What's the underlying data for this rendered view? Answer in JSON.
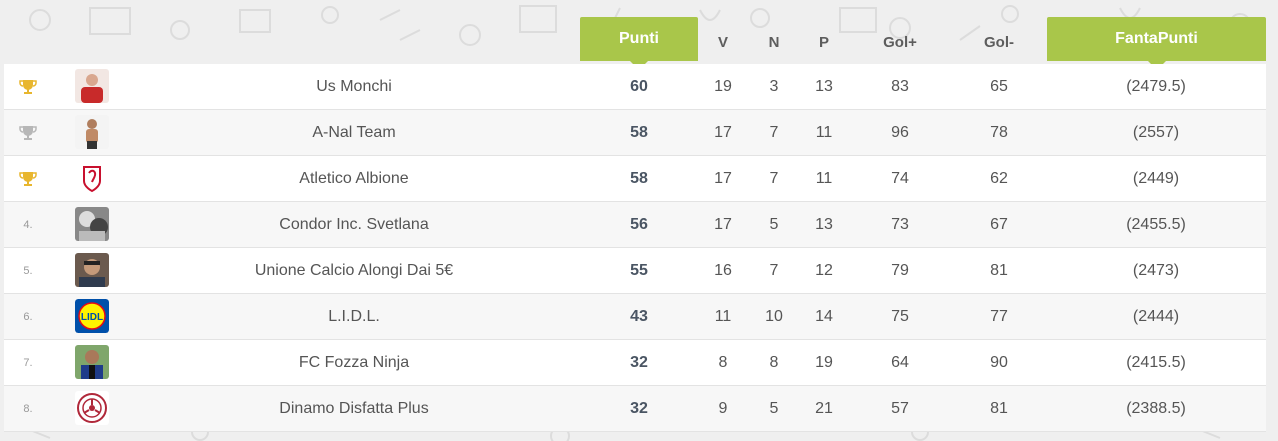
{
  "header": {
    "punti": "Punti",
    "v": "V",
    "n": "N",
    "p": "P",
    "gol_plus": "Gol+",
    "gol_minus": "Gol-",
    "fantapunti": "FantaPunti",
    "accent_color": "#a9c64a"
  },
  "rows": [
    {
      "rank_icon": "trophy-gold",
      "rank": "",
      "team": "Us Monchi",
      "punti": "60",
      "v": "19",
      "n": "3",
      "p": "13",
      "gol_plus": "83",
      "gol_minus": "65",
      "fantapunti": "(2479.5)"
    },
    {
      "rank_icon": "trophy-silver",
      "rank": "",
      "team": "A-Nal Team",
      "punti": "58",
      "v": "17",
      "n": "7",
      "p": "11",
      "gol_plus": "96",
      "gol_minus": "78",
      "fantapunti": "(2557)"
    },
    {
      "rank_icon": "trophy-gold",
      "rank": "",
      "team": "Atletico Albione",
      "punti": "58",
      "v": "17",
      "n": "7",
      "p": "11",
      "gol_plus": "74",
      "gol_minus": "62",
      "fantapunti": "(2449)"
    },
    {
      "rank_icon": "",
      "rank": "4.",
      "team": "Condor Inc. Svetlana",
      "punti": "56",
      "v": "17",
      "n": "5",
      "p": "13",
      "gol_plus": "73",
      "gol_minus": "67",
      "fantapunti": "(2455.5)"
    },
    {
      "rank_icon": "",
      "rank": "5.",
      "team": "Unione Calcio Alongi Dai 5€",
      "punti": "55",
      "v": "16",
      "n": "7",
      "p": "12",
      "gol_plus": "79",
      "gol_minus": "81",
      "fantapunti": "(2473)"
    },
    {
      "rank_icon": "",
      "rank": "6.",
      "team": "L.I.D.L.",
      "punti": "43",
      "v": "11",
      "n": "10",
      "p": "14",
      "gol_plus": "75",
      "gol_minus": "77",
      "fantapunti": "(2444)"
    },
    {
      "rank_icon": "",
      "rank": "7.",
      "team": "FC Fozza Ninja",
      "punti": "32",
      "v": "8",
      "n": "8",
      "p": "19",
      "gol_plus": "64",
      "gol_minus": "90",
      "fantapunti": "(2415.5)"
    },
    {
      "rank_icon": "",
      "rank": "8.",
      "team": "Dinamo Disfatta Plus",
      "punti": "32",
      "v": "9",
      "n": "5",
      "p": "21",
      "gol_plus": "57",
      "gol_minus": "81",
      "fantapunti": "(2388.5)"
    }
  ],
  "logo_texts": {
    "lidl": "LIDL"
  }
}
